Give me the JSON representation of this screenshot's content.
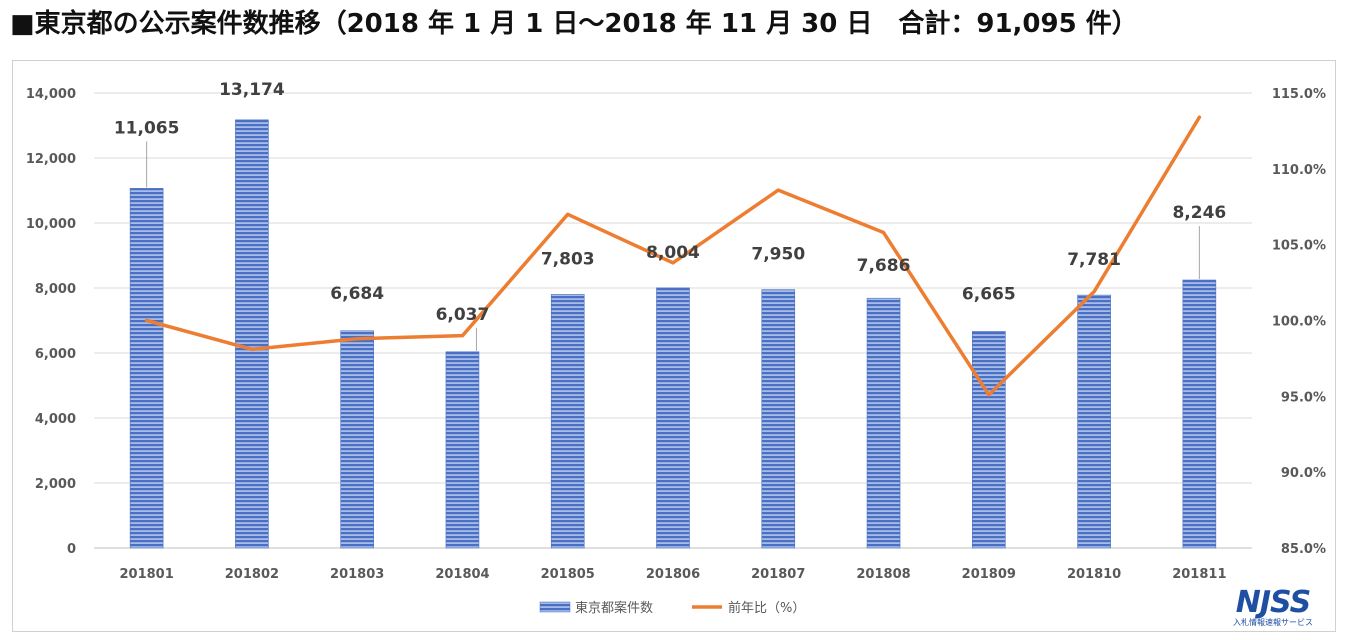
{
  "page_title": "■東京都の公示案件数推移（2018 年 1 月 1 日～2018 年 11 月 30 日　合計：91,095 件）",
  "logo": {
    "main": "NJSS",
    "sub": "入札情報速報サービス"
  },
  "colors": {
    "bar": "#4a70c4",
    "bar_light": "#a7bce6",
    "line": "#ed7d31",
    "grid": "#d9d9d9",
    "axis_text": "#595959",
    "label_text": "#404040"
  },
  "chart_data": {
    "type": "bar",
    "categories": [
      "201801",
      "201802",
      "201803",
      "201804",
      "201805",
      "201806",
      "201807",
      "201808",
      "201809",
      "201810",
      "201811"
    ],
    "series": [
      {
        "name": "東京都案件数",
        "type": "bar",
        "axis": "left",
        "values": [
          11065,
          13174,
          6684,
          6037,
          7803,
          8004,
          7950,
          7686,
          6665,
          7781,
          8246
        ],
        "labels": [
          "11,065",
          "13,174",
          "6,684",
          "6,037",
          "7,803",
          "8,004",
          "7,950",
          "7,686",
          "6,665",
          "7,781",
          "8,246"
        ]
      },
      {
        "name": "前年比（%）",
        "type": "line",
        "axis": "right",
        "values": [
          100.0,
          98.1,
          98.8,
          99.0,
          107.0,
          103.8,
          108.6,
          105.8,
          95.1,
          101.9,
          113.4
        ]
      }
    ],
    "left_axis": {
      "ylim": [
        0,
        14000
      ],
      "ticks": [
        "0",
        "2,000",
        "4,000",
        "6,000",
        "8,000",
        "10,000",
        "12,000",
        "14,000"
      ]
    },
    "right_axis": {
      "ylim": [
        85,
        115
      ],
      "ticks": [
        "85.0%",
        "90.0%",
        "95.0%",
        "100.0%",
        "105.0%",
        "110.0%",
        "115.0%"
      ]
    },
    "grid": true,
    "legend_position": "bottom"
  }
}
